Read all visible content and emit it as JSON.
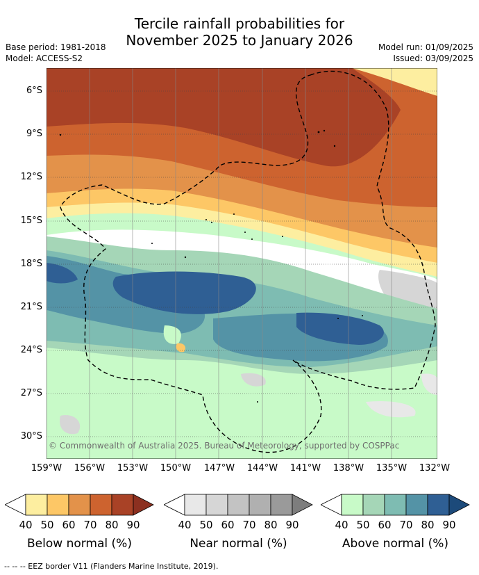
{
  "title": {
    "line1": "Tercile rainfall probabilities for",
    "line2": "November 2025 to January 2026"
  },
  "meta": {
    "base_period": "Base period: 1981-2018",
    "model": "Model: ACCESS-S2",
    "model_run": "Model run: 01/09/2025",
    "issued": "Issued: 03/09/2025"
  },
  "map": {
    "lat_labels": [
      "6°S",
      "9°S",
      "12°S",
      "15°S",
      "18°S",
      "21°S",
      "24°S",
      "27°S",
      "30°S"
    ],
    "lon_labels": [
      "159°W",
      "156°W",
      "153°W",
      "150°W",
      "147°W",
      "144°W",
      "141°W",
      "138°W",
      "135°W",
      "132°W"
    ],
    "copyright": "© Commonwealth of Australia 2025. Bureau of Meteorology, supported by COSPPac",
    "colors": {
      "below": [
        "#fdeea0",
        "#fdc766",
        "#e3924a",
        "#cd632f",
        "#a94226"
      ],
      "near": [
        "#e8e8e8",
        "#d6d6d6",
        "#c3c3c3",
        "#b0b0b0",
        "#9a9a9a"
      ],
      "above": [
        "#c8fac8",
        "#a5d6b7",
        "#7ebcb2",
        "#5493a6",
        "#2f5f94"
      ]
    }
  },
  "legends": [
    {
      "title": "Below normal (%)",
      "ticks": [
        "40",
        "50",
        "60",
        "70",
        "80",
        "90"
      ],
      "colors": [
        "#ffffff",
        "#fdeea0",
        "#fdc766",
        "#e3924a",
        "#cd632f",
        "#a94226",
        "#8c3020"
      ]
    },
    {
      "title": "Near normal (%)",
      "ticks": [
        "40",
        "50",
        "60",
        "70",
        "80",
        "90"
      ],
      "colors": [
        "#ffffff",
        "#e8e8e8",
        "#d6d6d6",
        "#c3c3c3",
        "#b0b0b0",
        "#9a9a9a",
        "#7d7d7d"
      ]
    },
    {
      "title": "Above normal (%)",
      "ticks": [
        "40",
        "50",
        "60",
        "70",
        "80",
        "90"
      ],
      "colors": [
        "#ffffff",
        "#c8fac8",
        "#a5d6b7",
        "#7ebcb2",
        "#5493a6",
        "#2f5f94",
        "#1c4a7a"
      ]
    }
  ],
  "footnote": "-- -- -- EEZ border V11 (Flanders Marine Institute, 2019)."
}
